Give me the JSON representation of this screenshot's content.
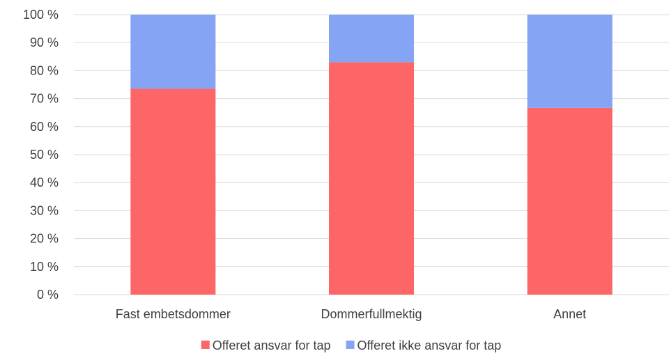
{
  "chart_data": {
    "type": "bar",
    "stacked": true,
    "categories": [
      "Fast embetsdommer",
      "Dommerfullmektig",
      "Annet"
    ],
    "series": [
      {
        "name": "Offeret ansvar for tap",
        "values": [
          73.5,
          83,
          66.7
        ],
        "color": "#fc6666"
      },
      {
        "name": "Offeret ikke ansvar for tap",
        "values": [
          26.5,
          17,
          33.3
        ],
        "color": "#86a4f4"
      }
    ],
    "yticks": [
      "0 %",
      "10 %",
      "20 %",
      "30 %",
      "40 %",
      "50 %",
      "60 %",
      "70 %",
      "80 %",
      "90 %",
      "100 %"
    ],
    "ylim": [
      0,
      100
    ],
    "grid": true,
    "legend_position": "bottom"
  }
}
